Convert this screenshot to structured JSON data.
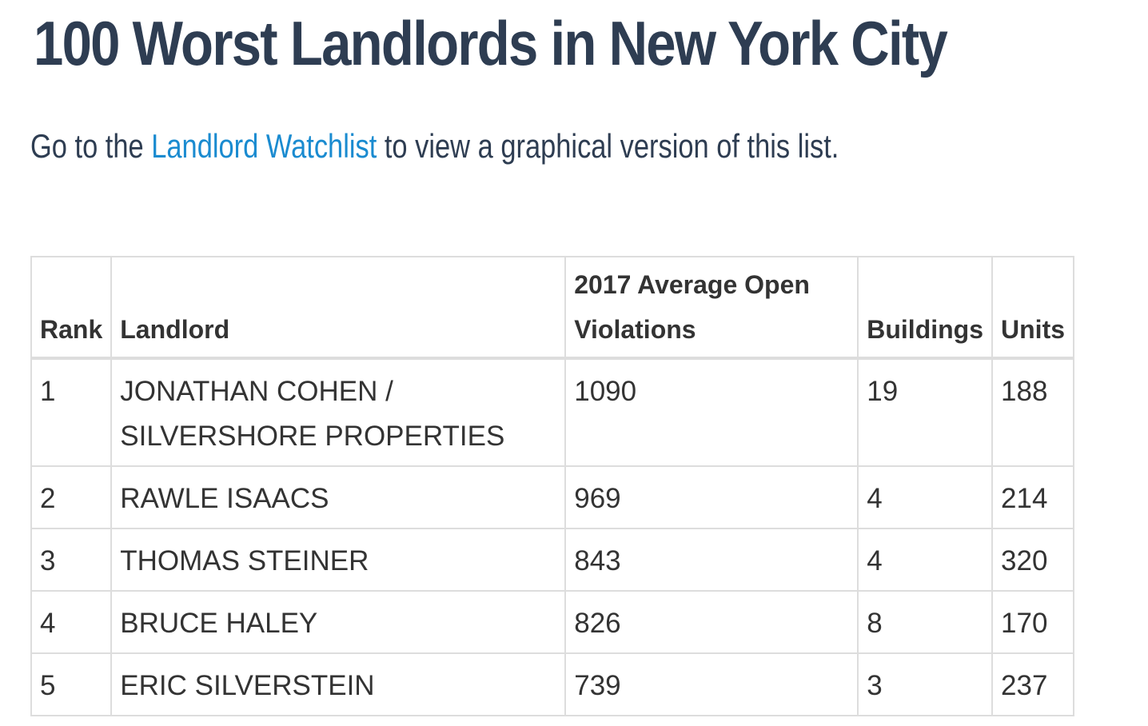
{
  "title": "100 Worst Landlords in New York City",
  "intro": {
    "before": "Go to the ",
    "link": "Landlord Watchlist",
    "after": " to view a graphical version of this list."
  },
  "colors": {
    "heading": "#2e3d52",
    "link": "#1a8bd0",
    "border": "#dddddd",
    "text": "#333333"
  },
  "table": {
    "headers": {
      "rank": "Rank",
      "landlord": "Landlord",
      "violations_line1": "2017 Average Open",
      "violations_line2": "Violations",
      "buildings": "Buildings",
      "units": "Units"
    },
    "rows": [
      {
        "rank": "1",
        "landlord": "JONATHAN COHEN / SILVERSHORE PROPERTIES",
        "violations": "1090",
        "buildings": "19",
        "units": "188"
      },
      {
        "rank": "2",
        "landlord": "RAWLE ISAACS",
        "violations": "969",
        "buildings": "4",
        "units": "214"
      },
      {
        "rank": "3",
        "landlord": "THOMAS STEINER",
        "violations": "843",
        "buildings": "4",
        "units": "320"
      },
      {
        "rank": "4",
        "landlord": "BRUCE HALEY",
        "violations": "826",
        "buildings": "8",
        "units": "170"
      },
      {
        "rank": "5",
        "landlord": "ERIC SILVERSTEIN",
        "violations": "739",
        "buildings": "3",
        "units": "237"
      }
    ]
  }
}
